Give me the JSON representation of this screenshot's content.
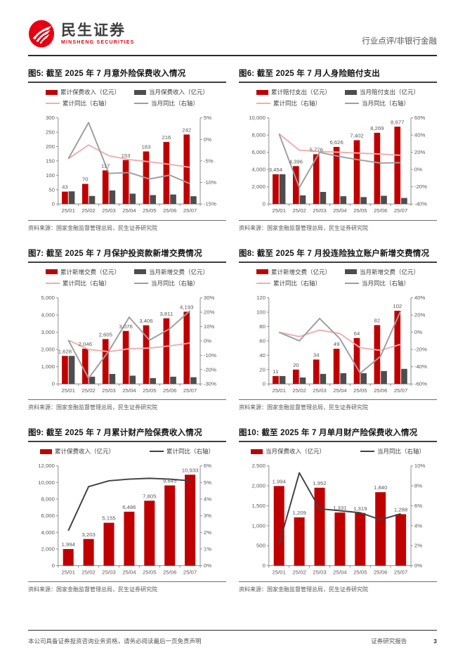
{
  "header": {
    "brand_cn": "民生证券",
    "brand_en": "MINSHENG SECURITIES",
    "category": "行业点评/非银行金融"
  },
  "colors": {
    "brand_red": "#E60012",
    "bar_red": "#C00000",
    "bar_dark": "#4D4D4D",
    "line_pink": "#EFAFAF",
    "line_gray": "#9E9E9E",
    "line_dark": "#404040"
  },
  "footer": {
    "left": "本公司具备证券投资咨询业务资格，请务必阅读最后一页免责声明",
    "right": "证券研究报告",
    "page": "3"
  },
  "chart_data": [
    {
      "type": "bar",
      "title": "图5: 截至 2025 年 7 月意外险保费收入情况",
      "source": "资料来源：国家金融监督管理总局，民生证券研究院",
      "categories": [
        "25/01",
        "25/02",
        "25/03",
        "25/04",
        "25/05",
        "25/06",
        "25/07"
      ],
      "left_axis": {
        "min": 0,
        "max": 300,
        "step": 50,
        "format": "number"
      },
      "right_axis": {
        "min": -15,
        "max": 5,
        "step": 5,
        "format": "percent"
      },
      "series": [
        {
          "name": "累计保费收入（亿元）",
          "type": "bar",
          "axis": "left",
          "color": "#C00000",
          "labels": true,
          "values": [
            43,
            70,
            117,
            153,
            183,
            216,
            242
          ]
        },
        {
          "name": "当月保费收入（亿元）",
          "type": "bar",
          "axis": "left",
          "color": "#4D4D4D",
          "values": [
            44,
            28,
            47,
            36,
            31,
            33,
            27
          ]
        },
        {
          "name": "累计同比（右轴）",
          "type": "line",
          "axis": "right",
          "color": "#EFAFAF",
          "values": [
            -4.5,
            -1.3,
            -3.8,
            -4.7,
            -5.2,
            -5.8,
            -6.5
          ]
        },
        {
          "name": "当月同比（右轴）",
          "type": "line",
          "axis": "right",
          "color": "#9E9E9E",
          "values": [
            -4.5,
            3.9,
            -7.9,
            -7.7,
            -9.2,
            -8.3,
            -10.3
          ]
        }
      ]
    },
    {
      "type": "bar",
      "title": "图6: 截至 2025 年 7 月人身险赔付支出",
      "source": "资料来源：国家金融监督管理总局，民生证券研究院",
      "categories": [
        "25/01",
        "25/02",
        "25/03",
        "25/04",
        "25/05",
        "25/06",
        "25/07"
      ],
      "left_axis": {
        "min": 0,
        "max": 10000,
        "step": 2000,
        "format": "number"
      },
      "right_axis": {
        "min": -40,
        "max": 60,
        "step": 20,
        "format": "percent"
      },
      "series": [
        {
          "name": "累计赔付支出（亿元）",
          "type": "bar",
          "axis": "left",
          "color": "#C00000",
          "labels": true,
          "values": [
            3454,
            4396,
            5776,
            6626,
            7402,
            8269,
            8977
          ]
        },
        {
          "name": "当月赔付支出（亿元）",
          "type": "bar",
          "axis": "left",
          "color": "#4D4D4D",
          "values": [
            3454,
            1000,
            1400,
            900,
            800,
            950,
            700
          ]
        },
        {
          "name": "累计同比（右轴）",
          "type": "line",
          "axis": "right",
          "color": "#EFAFAF",
          "values": [
            41.5,
            22.5,
            21,
            20,
            19,
            18,
            16.5
          ]
        },
        {
          "name": "当月同比（右轴）",
          "type": "line",
          "axis": "right",
          "color": "#9E9E9E",
          "values": [
            41.5,
            -21,
            20,
            15,
            11,
            7.5,
            8
          ]
        }
      ]
    },
    {
      "type": "bar",
      "title": "图7: 截至 2025 年 7 月保护投资款新增交费情况",
      "source": "资料来源：国家金融监督管理总局，民生证券研究院",
      "categories": [
        "25/01",
        "25/02",
        "25/03",
        "25/04",
        "25/05",
        "25/06",
        "25/07"
      ],
      "left_axis": {
        "min": 0,
        "max": 5000,
        "step": 1000,
        "format": "number"
      },
      "right_axis": {
        "min": -30,
        "max": 30,
        "step": 10,
        "format": "percent"
      },
      "series": [
        {
          "name": "累计新增交费（亿元）",
          "type": "bar",
          "axis": "left",
          "color": "#C00000",
          "labels": true,
          "values": [
            1628,
            2046,
            2605,
            3076,
            3406,
            3811,
            4193
          ]
        },
        {
          "name": "当月新增交费（亿元）",
          "type": "bar",
          "axis": "left",
          "color": "#4D4D4D",
          "values": [
            1628,
            420,
            580,
            480,
            340,
            420,
            390
          ]
        },
        {
          "name": "累计同比（右轴）",
          "type": "line",
          "axis": "right",
          "color": "#EFAFAF",
          "values": [
            0.5,
            -6,
            -7.5,
            -5.5,
            -5,
            -3.5,
            -1.5
          ]
        },
        {
          "name": "当月同比（右轴）",
          "type": "line",
          "axis": "right",
          "color": "#9E9E9E",
          "values": [
            0.5,
            -26,
            -7,
            16.5,
            0.5,
            8.5,
            21
          ]
        }
      ]
    },
    {
      "type": "bar",
      "title": "图8: 截至 2025 年 7 月投连险独立账户新增交费情况",
      "source": "资料来源：国家金融监督管理总局，民生证券研究院",
      "categories": [
        "25/01",
        "25/02",
        "25/03",
        "25/04",
        "25/05",
        "25/06",
        "25/07"
      ],
      "left_axis": {
        "min": 0,
        "max": 120,
        "step": 20,
        "format": "number"
      },
      "right_axis": {
        "min": -60,
        "max": 40,
        "step": 20,
        "format": "percent"
      },
      "series": [
        {
          "name": "累计新增交费（亿元）",
          "type": "bar",
          "axis": "left",
          "color": "#C00000",
          "labels": true,
          "values": [
            11,
            20,
            34,
            49,
            64,
            82,
            102
          ]
        },
        {
          "name": "当月新增交费（亿元）",
          "type": "bar",
          "axis": "left",
          "color": "#4D4D4D",
          "values": [
            11,
            9,
            14,
            15,
            15,
            18,
            21
          ]
        },
        {
          "name": "累计同比（右轴）",
          "type": "line",
          "axis": "right",
          "color": "#EFAFAF",
          "values": [
            0,
            -5,
            2.5,
            -1.5,
            -18,
            -21,
            -14
          ]
        },
        {
          "name": "当月同比（右轴）",
          "type": "line",
          "axis": "right",
          "color": "#9E9E9E",
          "values": [
            0,
            -10,
            16,
            -7.5,
            -47.5,
            -28,
            25
          ]
        }
      ]
    },
    {
      "type": "bar",
      "title": "图9: 截至 2025 年 7 月累计财产险保费收入情况",
      "source": "资料来源：国家金融监督管理总局，民生证券研究院",
      "categories": [
        "25/01",
        "25/02",
        "25/03",
        "25/04",
        "25/05",
        "25/06",
        "25/07"
      ],
      "left_axis": {
        "min": 0,
        "max": 12000,
        "step": 2000,
        "format": "number"
      },
      "right_axis": {
        "min": 0,
        "max": 6,
        "step": 1,
        "format": "percent"
      },
      "series": [
        {
          "name": "累计保费收入（亿元）",
          "type": "bar",
          "axis": "left",
          "color": "#C00000",
          "labels": true,
          "values": [
            1994,
            3203,
            5155,
            6486,
            7805,
            9645,
            10933
          ]
        },
        {
          "name": "累计同比（右轴）",
          "type": "line",
          "axis": "right",
          "color": "#404040",
          "values": [
            2.1,
            4.75,
            5.1,
            5.2,
            5.25,
            5.2,
            5.1
          ]
        }
      ]
    },
    {
      "type": "bar",
      "title": "图10: 截至 2025 年 7 月单月财产险保费收入情况",
      "source": "资料来源：国家金融监督管理总局，民生证券研究院",
      "categories": [
        "25/01",
        "25/02",
        "25/03",
        "25/04",
        "25/05",
        "25/06",
        "25/07"
      ],
      "left_axis": {
        "min": 0,
        "max": 2500,
        "step": 500,
        "format": "number"
      },
      "right_axis": {
        "min": 0,
        "max": 10,
        "step": 2,
        "format": "percent"
      },
      "series": [
        {
          "name": "当月保费收入（亿元）",
          "type": "bar",
          "axis": "left",
          "color": "#C00000",
          "labels": true,
          "values": [
            1994,
            1209,
            1952,
            1331,
            1319,
            1840,
            1288
          ]
        },
        {
          "name": "当月同比（右轴）",
          "type": "line",
          "axis": "right",
          "color": "#404040",
          "values": [
            2.1,
            9.3,
            5.7,
            5.5,
            5.3,
            4.6,
            5.2
          ]
        }
      ]
    }
  ]
}
